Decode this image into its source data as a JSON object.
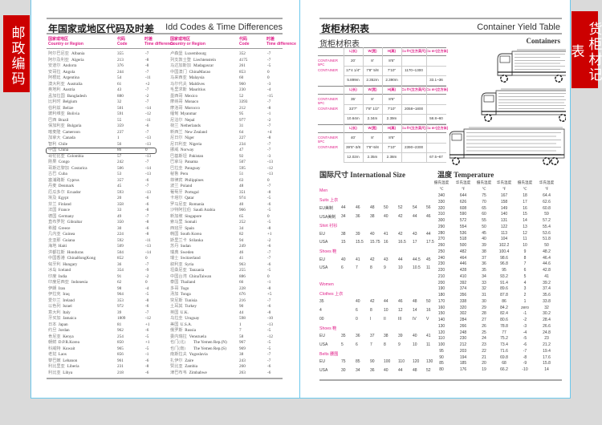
{
  "side_labels": {
    "left": "邮政编码",
    "right": "货柜材记表"
  },
  "idd": {
    "title_cn": "年国家或地区代码及时差",
    "title_en": "Idd Codes & Time Differences",
    "headers": {
      "country_cn": "国家或地区",
      "country_en": "Country or Region",
      "code_cn": "代码",
      "code_en": "Code",
      "diff_cn": "时差",
      "diff_en": "Time difference"
    },
    "left": [
      [
        "阿尔巴尼亚",
        "Albania",
        "355",
        "-7"
      ],
      [
        "阿尔及利亚",
        "Algeria",
        "213",
        "-8"
      ],
      [
        "安道尔",
        "Andorra",
        "376",
        "-8"
      ],
      [
        "安哥拉",
        "Angola",
        "244",
        "-7"
      ],
      [
        "阿根廷",
        "Argentina",
        "54",
        "-11"
      ],
      [
        "澳大利亚",
        "Australia",
        "61",
        "+2"
      ],
      [
        "奥地利",
        "Austria",
        "43",
        "-7"
      ],
      [
        "孟加拉国",
        "Bangladesh",
        "880",
        "-2"
      ],
      [
        "比利时",
        "Belgium",
        "32",
        "-7"
      ],
      [
        "伯利兹",
        "Belize",
        "501",
        "-14"
      ],
      [
        "玻利维亚",
        "Bolivia",
        "591",
        "-12"
      ],
      [
        "巴西",
        "Brazil",
        "55",
        "-11"
      ],
      [
        "保加利亚",
        "Bulgaria",
        "359",
        "-6"
      ],
      [
        "喀麦隆",
        "Cameroon",
        "237",
        "-7"
      ],
      [
        "加拿大",
        "Canada",
        "1",
        "-13"
      ],
      [
        "智利",
        "Chile",
        "56",
        "-13"
      ],
      [
        "中国",
        "China",
        "86",
        "0"
      ],
      [
        "哥伦比亚",
        "Colombia",
        "57",
        "-13"
      ],
      [
        "刚果",
        "Congo",
        "242",
        "-7"
      ],
      [
        "哥斯达黎加",
        "Costarica",
        "506",
        "-14"
      ],
      [
        "古巴",
        "Cuba",
        "53",
        "-13"
      ],
      [
        "塞浦路斯",
        "Cyprus",
        "357",
        "-6"
      ],
      [
        "丹麦",
        "Denmark",
        "45",
        "-7"
      ],
      [
        "厄瓜多尔",
        "Ecuador",
        "593",
        "-13"
      ],
      [
        "埃及",
        "Egypt",
        "20",
        "-6"
      ],
      [
        "芬兰",
        "Finland",
        "358",
        "-6"
      ],
      [
        "法国",
        "France",
        "33",
        "-8"
      ],
      [
        "德国",
        "Germany",
        "49",
        "-7"
      ],
      [
        "直布罗陀",
        "Gibraltar",
        "350",
        "-8"
      ],
      [
        "希腊",
        "Greece",
        "30",
        "-6"
      ],
      [
        "几内亚",
        "Guinea",
        "224",
        "-8"
      ],
      [
        "圭亚那",
        "Guiana",
        "592",
        "-11"
      ],
      [
        "海地",
        "Haiti",
        "509",
        "-13"
      ],
      [
        "洪都拉斯",
        "Honduras",
        "504",
        "-14"
      ],
      [
        "中国香港",
        "ChinaHongKong",
        "852",
        "0"
      ],
      [
        "匈牙利",
        "Hungary",
        "36",
        "-7"
      ],
      [
        "冰岛",
        "Iceland",
        "354",
        "-9"
      ],
      [
        "印度",
        "India",
        "91",
        "-2"
      ],
      [
        "印度尼西亚",
        "Indonesia",
        "62",
        "0"
      ],
      [
        "伊朗",
        "Iran",
        "98",
        "-4"
      ],
      [
        "伊拉克",
        "Iraq",
        "964",
        "-5"
      ],
      [
        "爱尔兰",
        "Ireland",
        "353",
        "-8"
      ],
      [
        "以色列",
        "Israel",
        "972",
        "-6"
      ],
      [
        "意大利",
        "Italy",
        "39",
        "-7"
      ],
      [
        "牙买加",
        "Jamaica",
        "1809",
        "-12"
      ],
      [
        "日本",
        "Japan",
        "81",
        "+1"
      ],
      [
        "约旦",
        "Jordan",
        "962",
        "-6"
      ],
      [
        "肯尼亚",
        "Kenya",
        "254",
        "-5"
      ],
      [
        "朝鲜",
        "D.P.R.Korea",
        "850",
        "+1"
      ],
      [
        "科威特",
        "Kuwait",
        "965",
        "-5"
      ],
      [
        "老挝",
        "Laos",
        "856",
        "-1"
      ],
      [
        "黎巴嫩",
        "Lebanon",
        "961",
        "-6"
      ],
      [
        "利比里亚",
        "Liberia",
        "231",
        "-8"
      ],
      [
        "利比亚",
        "Libya",
        "218",
        "-6"
      ]
    ],
    "right": [
      [
        "卢森堡",
        "Luxembourg",
        "352",
        "-7"
      ],
      [
        "列支敦士登",
        "Liechtenstein",
        "4175",
        "-7"
      ],
      [
        "马达加斯加",
        "Madagascar",
        "261",
        "-5"
      ],
      [
        "中国澳门",
        "ChinaMacao",
        "853",
        "0"
      ],
      [
        "马来西亚",
        "Malaysia",
        "60",
        "0"
      ],
      [
        "马尔代夫",
        "Maldives",
        "960",
        "-3"
      ],
      [
        "毛里求斯",
        "Mauritius",
        "230",
        "-4"
      ],
      [
        "墨西哥",
        "Mexico",
        "52",
        "-15"
      ],
      [
        "摩纳哥",
        "Monaco",
        "3393",
        "-7"
      ],
      [
        "摩洛哥",
        "Morocco",
        "212",
        "-8"
      ],
      [
        "缅甸",
        "Myanmar",
        "95",
        "-1"
      ],
      [
        "尼泊尔",
        "Nepal",
        "977",
        "-2"
      ],
      [
        "荷兰",
        "Netherlands",
        "31",
        "-7"
      ],
      [
        "新西兰",
        "New Zealand",
        "64",
        "+4"
      ],
      [
        "尼日尔",
        "Niger",
        "227",
        "-8"
      ],
      [
        "尼日利亚",
        "Nigeria",
        "234",
        "-7"
      ],
      [
        "挪威",
        "Norway",
        "47",
        "-7"
      ],
      [
        "巴基斯坦",
        "Pakistan",
        "92",
        "-3"
      ],
      [
        "巴拿马",
        "Panama",
        "507",
        "-13"
      ],
      [
        "巴拉圭",
        "Paraguay",
        "595",
        "-12"
      ],
      [
        "秘鲁",
        "Peru",
        "51",
        "-13"
      ],
      [
        "菲律宾",
        "Philippines",
        "63",
        "0"
      ],
      [
        "波兰",
        "Poland",
        "48",
        "-7"
      ],
      [
        "葡萄牙",
        "Portugal",
        "351",
        "-8"
      ],
      [
        "卡塔尔",
        "Qatar",
        "974",
        "-5"
      ],
      [
        "罗马尼亚",
        "Romania",
        "40",
        "-6"
      ],
      [
        "沙特阿拉伯",
        "Saudi Arabia",
        "966",
        "-5"
      ],
      [
        "新加坡",
        "Singapore",
        "65",
        "0"
      ],
      [
        "索马里",
        "Somali",
        "252",
        "-5"
      ],
      [
        "西班牙",
        "Spain",
        "34",
        "-8"
      ],
      [
        "韩国",
        "South Korea",
        "82",
        "+1"
      ],
      [
        "斯里兰卡",
        "Srilanka",
        "94",
        "-2"
      ],
      [
        "苏丹",
        "Sudan",
        "249",
        "-6"
      ],
      [
        "瑞典",
        "Sweden",
        "46",
        "-7"
      ],
      [
        "瑞士",
        "Switzerland",
        "41",
        "-7"
      ],
      [
        "叙利亚",
        "Syria",
        "963",
        "-6"
      ],
      [
        "坦桑尼亚",
        "Tanzania",
        "255",
        "-5"
      ],
      [
        "中国台湾",
        "ChinaTaiwan",
        "886",
        "0"
      ],
      [
        "泰国",
        "Thailand",
        "66",
        "-1"
      ],
      [
        "多哥",
        "Togo",
        "228",
        "-8"
      ],
      [
        "汤加",
        "Tonga",
        "676",
        "+5"
      ],
      [
        "突尼斯",
        "Tunisia",
        "216",
        "-7"
      ],
      [
        "土耳其",
        "Turkey",
        "90",
        "-6"
      ],
      [
        "英国",
        "U.K.",
        "44",
        "-8"
      ],
      [
        "乌拉圭",
        "Uruguay",
        "598",
        "-10"
      ],
      [
        "美国",
        "U.S.A.",
        "1",
        "-13"
      ],
      [
        "俄罗斯",
        "Russia",
        "7",
        "-5"
      ],
      [
        "委内瑞拉",
        "Venezuela",
        "58",
        "-12"
      ],
      [
        "也门(北)",
        "The Yemen Rep.(N)",
        "967",
        "-5"
      ],
      [
        "也门(南)",
        "The Yemen Rep.(S)",
        "969",
        "-5"
      ],
      [
        "南斯拉夫",
        "Yugoslavia",
        "38",
        "-7"
      ],
      [
        "扎伊尔",
        "Zaire",
        "243",
        "-7"
      ],
      [
        "赞比亚",
        "Zambia",
        "260",
        "-6"
      ],
      [
        "津巴布韦",
        "Zimbabwe",
        "263",
        "-6"
      ]
    ]
  },
  "container": {
    "title_cn": "货柜材积表",
    "title_en": "Container Yield Table",
    "subtitle": "货柜材积表",
    "containers_label": "Containers",
    "headers": [
      "L(长)",
      "W(宽)",
      "H(高)",
      "Cu ft³(立方英尺)",
      "Cu m³(立方米)"
    ],
    "blocks": [
      [
        [
          "CONTAINER 5PC",
          "20'",
          "8'",
          "8'6\"",
          "",
          ""
        ],
        [
          "CONTAINER",
          "17'4 1/4\"",
          "7'8\" 5/8",
          "7'10\"",
          "1170~1300",
          ""
        ],
        [
          "",
          "5.899m",
          "2.352m",
          "2.390m",
          "",
          "33.1~36"
        ]
      ],
      [
        [
          "CONTAINER 5PC",
          "35'",
          "8'",
          "8'6\"",
          "",
          ""
        ],
        [
          "CONTAINER",
          "33'7\"",
          "7'8\" 1/2\"",
          "7'10\"",
          "2058~1800",
          ""
        ],
        [
          "",
          "10.64m",
          "2.34m",
          "2.39m",
          "",
          "58.8~60"
        ]
      ],
      [
        [
          "CONTAINER 5PC",
          "40'",
          "8'",
          "8'6\"",
          "",
          ""
        ],
        [
          "CONTAINER",
          "39'5\"-3/8",
          "7'8\"-5/8",
          "7'10\"",
          "2390~2300",
          ""
        ],
        [
          "",
          "12.02m",
          "2.35m",
          "2.38m",
          "",
          "67.5~67"
        ]
      ]
    ]
  },
  "size": {
    "title_cn": "国际尺寸",
    "title_en": "International Size",
    "rows": [
      {
        "h": "Men"
      },
      {
        "h": "Suits 上衣"
      },
      {
        "l": "EU美制",
        "v": [
          "44",
          "46",
          "48",
          "50",
          "52",
          "54",
          "56"
        ]
      },
      {
        "l": "USA美制",
        "v": [
          "34",
          "36",
          "38",
          "40",
          "42",
          "44",
          "46"
        ]
      },
      {
        "h": "Shirt 衬衫"
      },
      {
        "l": "EU",
        "v": [
          "38",
          "39",
          "40",
          "41",
          "42",
          "43",
          "44"
        ]
      },
      {
        "l": "USA",
        "v": [
          "15",
          "15.5",
          "15.75",
          "16",
          "16.5",
          "17",
          "17.5"
        ]
      },
      {
        "h": "Shoes 鞋"
      },
      {
        "l": "EU",
        "v": [
          "40",
          "41",
          "42",
          "43",
          "44",
          "44.5",
          "45"
        ]
      },
      {
        "l": "USA",
        "v": [
          "6",
          "7",
          "8",
          "9",
          "10",
          "10.5",
          "11"
        ]
      },
      {
        "gap": true
      },
      {
        "h": "Women"
      },
      {
        "h": "Clothes 上衣"
      },
      {
        "l": "35",
        "v": [
          "40",
          "42",
          "44",
          "46",
          "48",
          "50"
        ]
      },
      {
        "l": "4",
        "v": [
          "6",
          "8",
          "10",
          "12",
          "14",
          "16"
        ]
      },
      {
        "l": "00",
        "v": [
          "0",
          "I",
          "II",
          "III",
          "IV",
          "V"
        ]
      },
      {
        "h": "Shoes 鞋"
      },
      {
        "l": "EU",
        "v": [
          "35",
          "36",
          "37",
          "38",
          "39",
          "40",
          "41"
        ]
      },
      {
        "l": "USA",
        "v": [
          "5",
          "6",
          "7",
          "8",
          "9",
          "10",
          "11"
        ]
      },
      {
        "h": "Belts 腰围"
      },
      {
        "l": "EU",
        "v": [
          "75",
          "85",
          "90",
          "100",
          "110",
          "120",
          "130"
        ]
      },
      {
        "l": "USA",
        "v": [
          "30",
          "34",
          "36",
          "40",
          "44",
          "48",
          "52"
        ]
      }
    ]
  },
  "temperature": {
    "title_cn": "温度",
    "title_en": "Temperature",
    "headers": [
      "摄氏温度",
      "华氏温度",
      "摄氏温度",
      "华氏温度",
      "摄氏温度",
      "华氏温度"
    ],
    "units": [
      "℃",
      "℉",
      "℃",
      "℉",
      "℃",
      "℉"
    ],
    "rows": [
      [
        "340",
        "644",
        "75",
        "167",
        "18",
        "64.4"
      ],
      [
        "330",
        "626",
        "70",
        "158",
        "17",
        "62.6"
      ],
      [
        "320",
        "608",
        "65",
        "149",
        "16",
        "60.8"
      ],
      [
        "310",
        "590",
        "60",
        "140",
        "15",
        "59"
      ],
      [
        "300",
        "572",
        "55",
        "131",
        "14",
        "57.2"
      ],
      [
        "290",
        "554",
        "50",
        "122",
        "13",
        "55.4"
      ],
      [
        "280",
        "536",
        "45",
        "113",
        "12",
        "53.6"
      ],
      [
        "270",
        "518",
        "40",
        "104",
        "11",
        "51.8"
      ],
      [
        "260",
        "500",
        "39",
        "102.2",
        "10",
        "50"
      ],
      [
        "250",
        "482",
        "38",
        "100.4",
        "9",
        "48.2"
      ],
      [
        "240",
        "464",
        "37",
        "98.6",
        "8",
        "46.4"
      ],
      [
        "230",
        "446",
        "36",
        "96.8",
        "7",
        "44.6"
      ],
      [
        "220",
        "428",
        "35",
        "95",
        "6",
        "42.8"
      ],
      [
        "210",
        "410",
        "34",
        "93.2",
        "5",
        "41"
      ],
      [
        "200",
        "392",
        "33",
        "91.4",
        "4",
        "39.2"
      ],
      [
        "190",
        "374",
        "32",
        "89.6",
        "3",
        "37.4"
      ],
      [
        "180",
        "356",
        "31",
        "87.8",
        "2",
        "35.6"
      ],
      [
        "170",
        "338",
        "30",
        "86",
        "1",
        "33.8"
      ],
      [
        "160",
        "320",
        "29",
        "84.2",
        "zero",
        "32"
      ],
      [
        "150",
        "302",
        "28",
        "82.4",
        "-1",
        "30.2"
      ],
      [
        "140",
        "284",
        "27",
        "80.6",
        "-2",
        "28.4"
      ],
      [
        "130",
        "266",
        "26",
        "78.8",
        "-3",
        "26.6"
      ],
      [
        "120",
        "248",
        "25",
        "77",
        "-4",
        "24.8"
      ],
      [
        "110",
        "230",
        "24",
        "75.2",
        "-5",
        "23"
      ],
      [
        "100",
        "212",
        "23",
        "73.4",
        "-6",
        "21.2"
      ],
      [
        "95",
        "203",
        "22",
        "71.6",
        "-7",
        "19.4"
      ],
      [
        "90",
        "194",
        "21",
        "69.8",
        "-8",
        "17.6"
      ],
      [
        "85",
        "185",
        "20",
        "68",
        "-9",
        "15.8"
      ],
      [
        "80",
        "176",
        "19",
        "66.2",
        "-10",
        "14"
      ]
    ]
  },
  "colors": {
    "accent": "#e0208a",
    "border": "#6cc8ec",
    "label_bg": "#cc0000"
  }
}
